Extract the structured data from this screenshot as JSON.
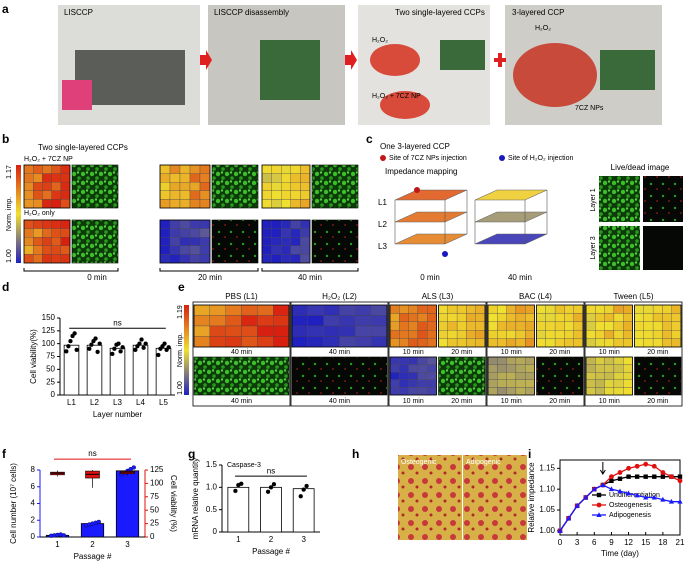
{
  "panel_labels": [
    "a",
    "b",
    "c",
    "d",
    "e",
    "f",
    "g",
    "h",
    "i"
  ],
  "panel_a": {
    "photos": [
      "LISCCP",
      "LISCCP disassembly",
      "Two single-layered CCPs",
      "3-layered CCP"
    ],
    "annotations": [
      "H₂O₂",
      "H₂O₂ + 7CZ NP",
      "H₂O₂",
      "7CZ NPs"
    ]
  },
  "panel_b": {
    "title": "Two single-layered CCPs",
    "rows": [
      "H₂O₂ + 7CZ NP",
      "H₂O₂ only"
    ],
    "colorbar": {
      "label": "Norm. imp.",
      "max": "1.17",
      "min": "1.00"
    },
    "times": [
      "0 min",
      "20 min",
      "40 min"
    ]
  },
  "panel_c": {
    "title": "One 3-layered CCP",
    "legend": [
      "Site of 7CZ NPs injection",
      "Site of H₂O₂ injection"
    ],
    "mapping_title": "Impedance mapping",
    "layers": [
      "L1",
      "L2",
      "L3"
    ],
    "times": [
      "0 min",
      "40 min"
    ],
    "image_title": "Live/dead image",
    "image_rows": [
      "Layer 1",
      "Layer 3"
    ]
  },
  "panel_e": {
    "groups": [
      "PBS (L1)",
      "H₂O₂ (L2)",
      "ALS (L3)",
      "BAC (L4)",
      "Tween (L5)"
    ],
    "colorbar": {
      "label": "Norm. imp.",
      "max": "1.19",
      "min": "1.00"
    },
    "times": [
      "40 min",
      "10 min",
      "20 min"
    ]
  },
  "panel_h": {
    "images": [
      "Osteogenic",
      "Adipogenic"
    ]
  },
  "chart_data": [
    {
      "type": "bar",
      "categories": [
        "L1",
        "L2",
        "L3",
        "L4",
        "L5"
      ],
      "values": [
        97,
        97,
        91,
        97,
        91
      ],
      "color": "#ffffff",
      "points": [
        [
          85,
          95,
          105,
          115,
          120,
          88
        ],
        [
          90,
          98,
          105,
          110,
          84,
          100
        ],
        [
          80,
          90,
          98,
          100,
          85,
          93
        ],
        [
          88,
          95,
          100,
          108,
          92,
          100
        ],
        [
          78,
          90,
          95,
          100,
          88,
          93
        ]
      ],
      "ylim": [
        0,
        150
      ],
      "yticks": [
        0,
        25,
        50,
        75,
        100,
        125,
        150
      ],
      "ylabel": "Cell viability(%)",
      "xlabel": "Layer number",
      "annotation": "ns"
    },
    {
      "type": "bar",
      "categories": [
        "1",
        "2",
        "3"
      ],
      "series": [
        {
          "color": "#1a1aff",
          "values": [
            0.2,
            1.6,
            7.9
          ],
          "points": [
            [
              0.15,
              0.2,
              0.25,
              0.3,
              0.2
            ],
            [
              1.4,
              1.5,
              1.6,
              1.7,
              1.8
            ],
            [
              7.5,
              7.7,
              7.9,
              8.1,
              8.3
            ]
          ]
        },
        {
          "color": "#e01010",
          "axis": "y2",
          "kind": "box",
          "values": [
            119,
            117,
            121
          ],
          "q1": [
            116,
            110,
            118
          ],
          "q3": [
            121,
            123,
            123
          ],
          "low": [
            113,
            92,
            115
          ],
          "high": [
            124,
            125,
            125
          ]
        }
      ],
      "ylim": [
        0,
        8
      ],
      "yticks": [
        0,
        2,
        4,
        6,
        8
      ],
      "y2lim": [
        0,
        125
      ],
      "y2ticks": [
        0,
        25,
        50,
        75,
        100,
        125
      ],
      "ylabel": "Cell number (10⁷ cells)",
      "y2label": "Cell viability (%)",
      "xlabel": "Passage #",
      "annotation": "ns"
    },
    {
      "type": "bar",
      "title": "Caspase-3",
      "categories": [
        "1",
        "2",
        "3"
      ],
      "values": [
        1.0,
        1.0,
        0.97
      ],
      "color": "#ffffff",
      "points": [
        [
          0.92,
          1.05,
          1.08
        ],
        [
          0.9,
          1.0,
          1.07
        ],
        [
          0.8,
          0.95,
          1.03
        ]
      ],
      "ylim": [
        0,
        1.5
      ],
      "yticks": [
        0,
        0.5,
        {
          "value": 1,
          "label": "1.0"
        },
        1.5
      ],
      "ylabel": "mRNA relative quantity",
      "xlabel": "Passage #",
      "annotation": "ns"
    },
    {
      "type": "line",
      "x": [
        0,
        1.5,
        3,
        4.5,
        6,
        7.5,
        9,
        10.5,
        12,
        13.5,
        15,
        16.5,
        18,
        19.5,
        21
      ],
      "series": [
        {
          "name": "Undifferentiation",
          "color": "#000000",
          "marker": "square",
          "values": [
            1.0,
            1.03,
            1.06,
            1.08,
            1.1,
            1.11,
            1.12,
            1.125,
            1.13,
            1.13,
            1.13,
            1.13,
            1.13,
            1.13,
            1.13
          ]
        },
        {
          "name": "Osteogenesis",
          "color": "#e01010",
          "marker": "circle",
          "values": [
            1.0,
            1.03,
            1.06,
            1.08,
            1.1,
            1.11,
            1.13,
            1.14,
            1.15,
            1.155,
            1.16,
            1.155,
            1.14,
            1.13,
            1.12
          ]
        },
        {
          "name": "Adipogenesis",
          "color": "#1a1aff",
          "marker": "triangle",
          "values": [
            1.0,
            1.03,
            1.06,
            1.08,
            1.1,
            1.11,
            1.1,
            1.095,
            1.09,
            1.085,
            1.08,
            1.08,
            1.075,
            1.07,
            1.07
          ]
        }
      ],
      "xlim": [
        0,
        21
      ],
      "xticks": [
        0,
        3,
        6,
        9,
        12,
        15,
        18,
        21
      ],
      "ylim": [
        0.99,
        1.17
      ],
      "yticks": [
        {
          "value": 1,
          "label": "1.00"
        },
        {
          "value": 1.05,
          "label": "1.05"
        },
        {
          "value": 1.1,
          "label": "1.10"
        },
        {
          "value": 1.15,
          "label": "1.15"
        }
      ],
      "xlabel": "Time (day)",
      "ylabel": "Relative impedance"
    }
  ]
}
